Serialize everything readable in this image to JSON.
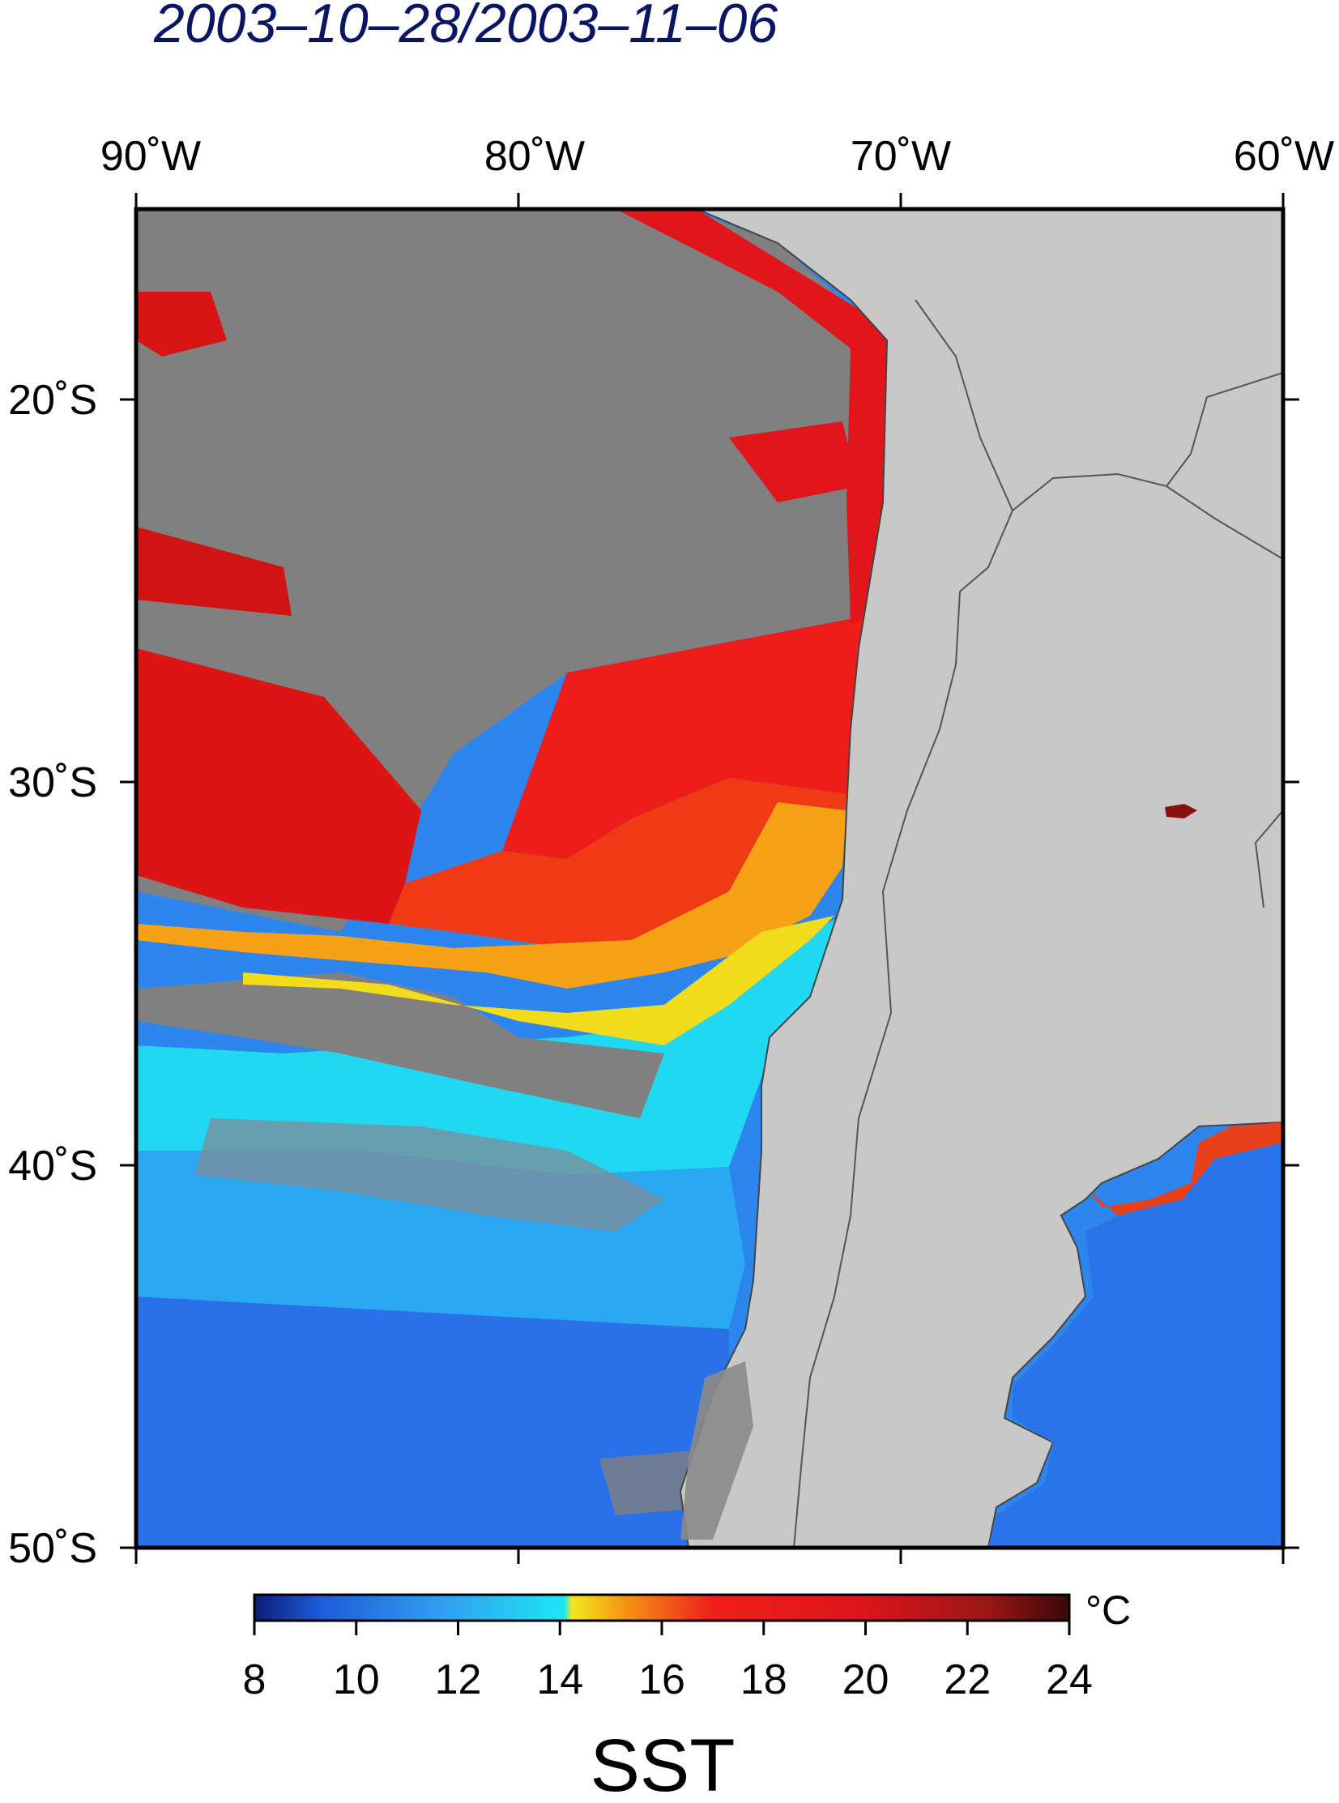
{
  "title": "2003–10–28/2003–11–06",
  "map": {
    "lon_labels": [
      "90˚W",
      "80˚W",
      "70˚W",
      "60˚W"
    ],
    "lat_labels": [
      "20˚S",
      "30˚S",
      "40˚S",
      "50˚S"
    ],
    "land_color": "#c8c8c8",
    "cloud_color": "#808080",
    "border_color": "#555555"
  },
  "colorbar": {
    "unit": "°C",
    "ticks": [
      "8",
      "10",
      "12",
      "14",
      "16",
      "18",
      "20",
      "22",
      "24"
    ],
    "range": [
      8,
      24
    ],
    "variable": "SST"
  }
}
